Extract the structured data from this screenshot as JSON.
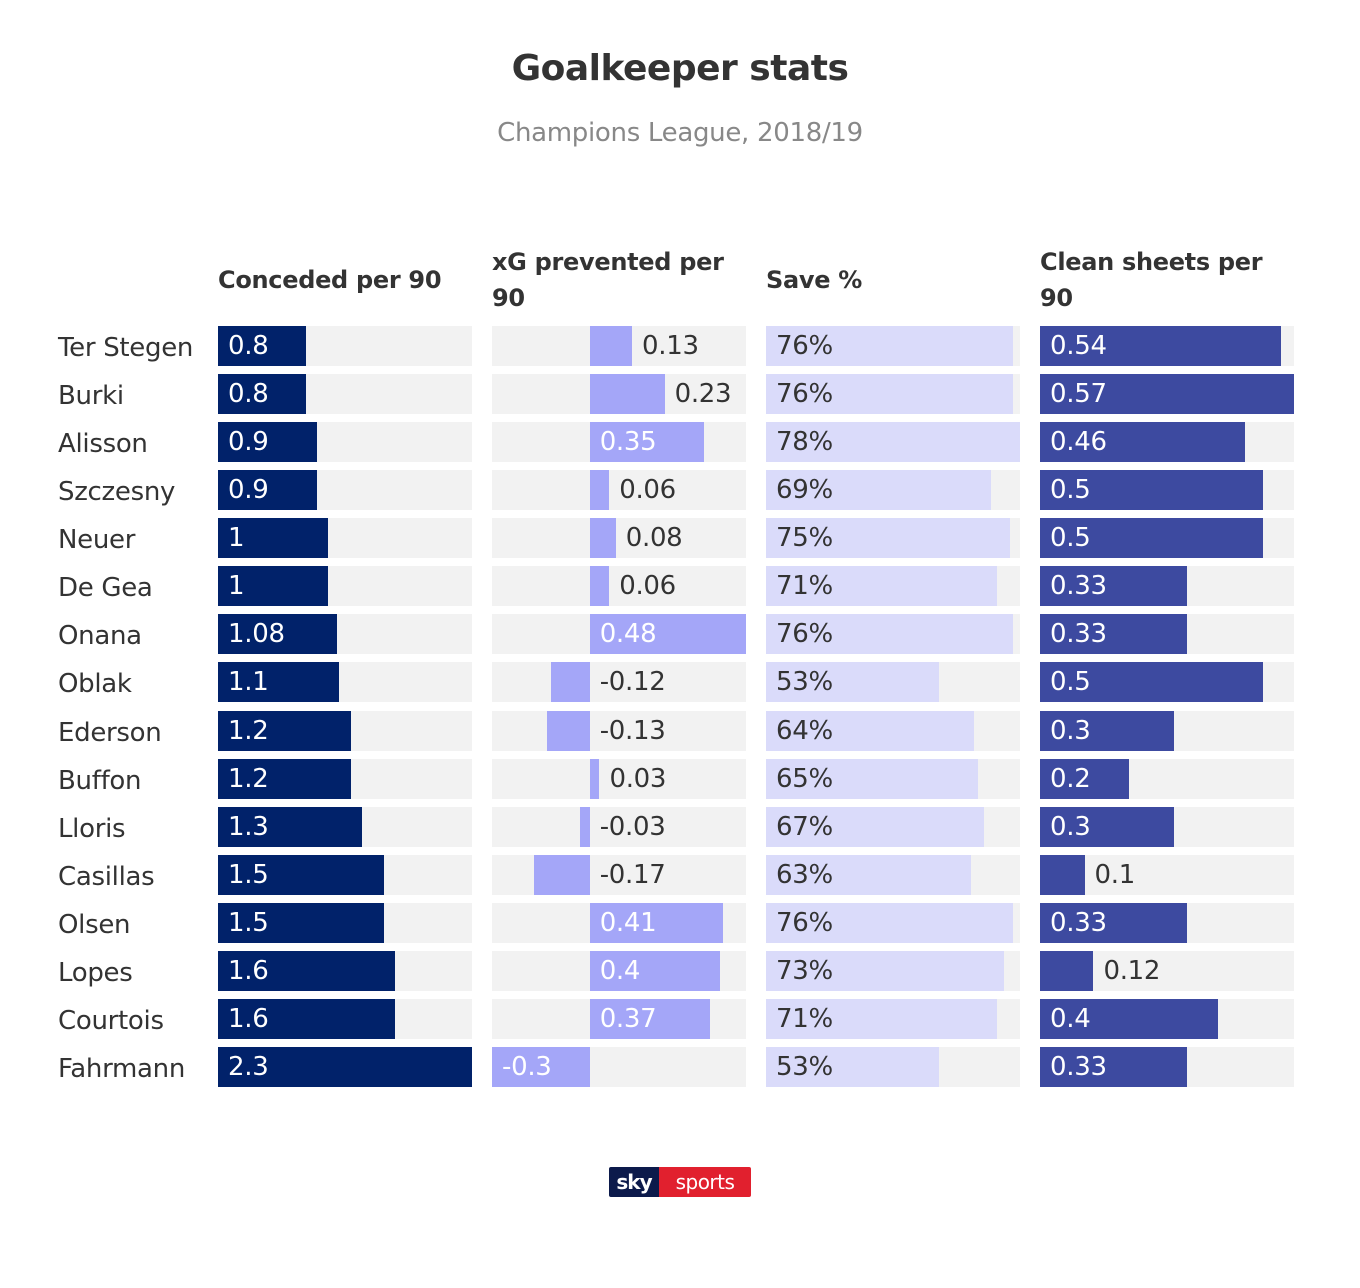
{
  "title": "Goalkeeper stats",
  "subtitle": "Champions League, 2018/19",
  "columns": [
    {
      "header": "Conceded per 90",
      "color": "#01226a",
      "light_color": "#01226a"
    },
    {
      "header": "xG prevented per 90",
      "color": "#a4a6f8",
      "light_color": "#a4a6f8"
    },
    {
      "header": "Save %",
      "color": "#dadbfa",
      "light_color": "#dadbfa"
    },
    {
      "header": "Clean sheets per 90",
      "color": "#3d4aa0",
      "light_color": "#3d4aa0"
    }
  ],
  "logo": {
    "left": "sky",
    "right": "sports"
  },
  "chart_data": {
    "type": "bar",
    "categories": [
      "Ter Stegen",
      "Burki",
      "Alisson",
      "Szczesny",
      "Neuer",
      "De Gea",
      "Onana",
      "Oblak",
      "Ederson",
      "Buffon",
      "Lloris",
      "Casillas",
      "Olsen",
      "Lopes",
      "Courtois",
      "Fahrmann"
    ],
    "series": [
      {
        "name": "Conceded per 90",
        "values": [
          0.8,
          0.8,
          0.9,
          0.9,
          1,
          1,
          1.08,
          1.1,
          1.2,
          1.2,
          1.3,
          1.5,
          1.5,
          1.6,
          1.6,
          2.3
        ],
        "labels": [
          "0.8",
          "0.8",
          "0.9",
          "0.9",
          "1",
          "1",
          "1.08",
          "1.1",
          "1.2",
          "1.2",
          "1.3",
          "1.5",
          "1.5",
          "1.6",
          "1.6",
          "2.3"
        ],
        "xlim": [
          0,
          2.3
        ]
      },
      {
        "name": "xG prevented per 90",
        "values": [
          0.13,
          0.23,
          0.35,
          0.06,
          0.08,
          0.06,
          0.48,
          -0.12,
          -0.13,
          0.03,
          -0.03,
          -0.17,
          0.41,
          0.4,
          0.37,
          -0.3
        ],
        "labels": [
          "0.13",
          "0.23",
          "0.35",
          "0.06",
          "0.08",
          "0.06",
          "0.48",
          "-0.12",
          "-0.13",
          "0.03",
          "-0.03",
          "-0.17",
          "0.41",
          "0.4",
          "0.37",
          "-0.3"
        ],
        "xlim": [
          -0.3,
          0.48
        ]
      },
      {
        "name": "Save %",
        "values": [
          76,
          76,
          78,
          69,
          75,
          71,
          76,
          53,
          64,
          65,
          67,
          63,
          76,
          73,
          71,
          53
        ],
        "labels": [
          "76%",
          "76%",
          "78%",
          "69%",
          "75%",
          "71%",
          "76%",
          "53%",
          "64%",
          "65%",
          "67%",
          "63%",
          "76%",
          "73%",
          "71%",
          "53%"
        ],
        "xlim": [
          0,
          78
        ]
      },
      {
        "name": "Clean sheets per 90",
        "values": [
          0.54,
          0.57,
          0.46,
          0.5,
          0.5,
          0.33,
          0.33,
          0.5,
          0.3,
          0.2,
          0.3,
          0.1,
          0.33,
          0.12,
          0.4,
          0.33
        ],
        "labels": [
          "0.54",
          "0.57",
          "0.46",
          "0.5",
          "0.5",
          "0.33",
          "0.33",
          "0.5",
          "0.3",
          "0.2",
          "0.3",
          "0.1",
          "0.33",
          "0.12",
          "0.4",
          "0.33"
        ],
        "xlim": [
          0,
          0.57
        ]
      }
    ],
    "title": "Goalkeeper stats",
    "subtitle": "Champions League, 2018/19",
    "grid": false,
    "legend": "none"
  }
}
